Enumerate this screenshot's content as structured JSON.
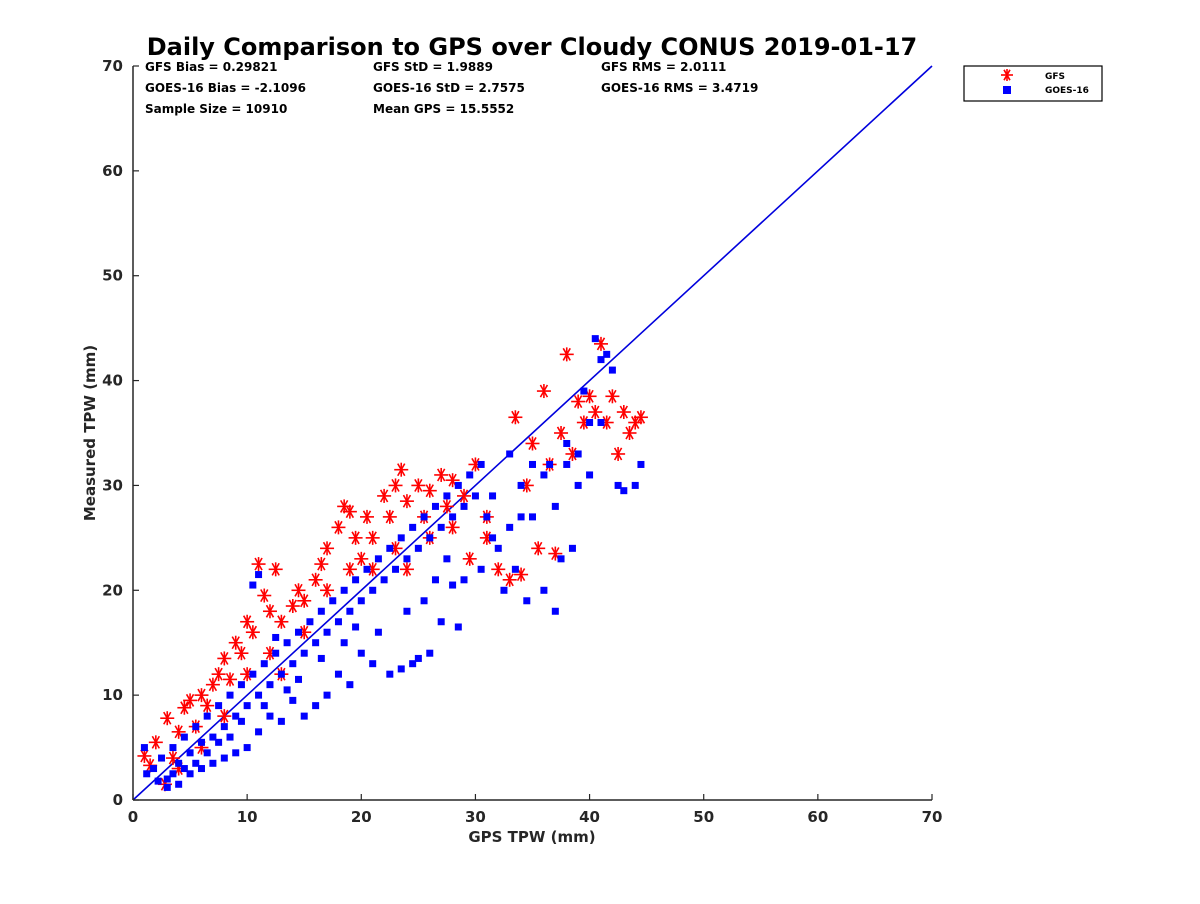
{
  "chart_data": {
    "type": "scatter",
    "title": "Daily Comparison to GPS over Cloudy CONUS 2019-01-17",
    "xlabel": "GPS TPW (mm)",
    "ylabel": "Measured TPW (mm)",
    "xlim": [
      0,
      70
    ],
    "ylim": [
      0,
      70
    ],
    "xticks": [
      "0",
      "10",
      "20",
      "30",
      "40",
      "50",
      "60",
      "70"
    ],
    "yticks": [
      "0",
      "10",
      "20",
      "30",
      "40",
      "50",
      "60",
      "70"
    ],
    "grid": false,
    "legend_position": "outside-top-right",
    "stats": [
      "GFS Bias = 0.29821",
      "GFS StD = 1.9889",
      "GFS RMS = 2.0111",
      "GOES-16 Bias = -2.1096",
      "GOES-16 StD = 2.7575",
      "GOES-16 RMS = 3.4719",
      "Sample Size = 10910",
      "Mean GPS = 15.5552"
    ],
    "reference_line": {
      "x": [
        0,
        70
      ],
      "y": [
        0,
        70
      ],
      "color": "#0000dd"
    },
    "series": [
      {
        "name": "GFS",
        "marker": "asterisk",
        "color": "#ff0000",
        "points": [
          [
            1,
            4.2
          ],
          [
            1.5,
            3.3
          ],
          [
            2,
            5.5
          ],
          [
            2.8,
            1.5
          ],
          [
            3,
            7.8
          ],
          [
            3.5,
            4
          ],
          [
            4,
            6.5
          ],
          [
            4.5,
            8.8
          ],
          [
            5,
            9.5
          ],
          [
            5.5,
            7
          ],
          [
            6,
            10
          ],
          [
            6.5,
            9
          ],
          [
            7,
            11
          ],
          [
            7.5,
            12
          ],
          [
            8,
            13.5
          ],
          [
            8.5,
            11.5
          ],
          [
            9,
            15
          ],
          [
            9.5,
            14
          ],
          [
            10,
            17
          ],
          [
            10.5,
            16
          ],
          [
            11,
            22.5
          ],
          [
            11.5,
            19.5
          ],
          [
            12,
            18
          ],
          [
            12.5,
            22
          ],
          [
            13,
            17
          ],
          [
            14,
            18.5
          ],
          [
            14.5,
            20
          ],
          [
            15,
            19
          ],
          [
            16,
            21
          ],
          [
            16.5,
            22.5
          ],
          [
            17,
            24
          ],
          [
            18,
            26
          ],
          [
            18.5,
            28
          ],
          [
            19,
            27.5
          ],
          [
            19.5,
            25
          ],
          [
            20,
            23
          ],
          [
            20.5,
            27
          ],
          [
            21,
            25
          ],
          [
            22,
            29
          ],
          [
            22.5,
            27
          ],
          [
            23,
            30
          ],
          [
            23.5,
            31.5
          ],
          [
            24,
            28.5
          ],
          [
            25,
            30
          ],
          [
            25.5,
            27
          ],
          [
            26,
            29.5
          ],
          [
            27,
            31
          ],
          [
            27.5,
            28
          ],
          [
            28,
            30.5
          ],
          [
            29,
            29
          ],
          [
            30,
            32
          ],
          [
            31,
            27
          ],
          [
            32,
            22
          ],
          [
            33,
            21
          ],
          [
            33.5,
            36.5
          ],
          [
            34,
            21.5
          ],
          [
            34.5,
            30
          ],
          [
            35,
            34
          ],
          [
            35.5,
            24
          ],
          [
            36,
            39
          ],
          [
            36.5,
            32
          ],
          [
            37,
            23.5
          ],
          [
            37.5,
            35
          ],
          [
            38,
            42.5
          ],
          [
            38.5,
            33
          ],
          [
            39,
            38
          ],
          [
            39.5,
            36
          ],
          [
            40,
            38.5
          ],
          [
            40.5,
            37
          ],
          [
            41,
            43.5
          ],
          [
            41.5,
            36
          ],
          [
            42,
            38.5
          ],
          [
            42.5,
            33
          ],
          [
            43,
            37
          ],
          [
            43.5,
            35
          ],
          [
            44,
            36
          ],
          [
            44.5,
            36.5
          ],
          [
            13,
            12
          ],
          [
            15,
            16
          ],
          [
            17,
            20
          ],
          [
            19,
            22
          ],
          [
            21,
            22
          ],
          [
            23,
            24
          ],
          [
            26,
            25
          ],
          [
            28,
            26
          ],
          [
            8,
            8
          ],
          [
            6,
            5
          ],
          [
            4,
            3
          ],
          [
            10,
            12
          ],
          [
            12,
            14
          ],
          [
            24,
            22
          ],
          [
            31,
            25
          ],
          [
            29.5,
            23
          ]
        ]
      },
      {
        "name": "GOES-16",
        "marker": "square",
        "color": "#0000ff",
        "points": [
          [
            1,
            5
          ],
          [
            1.2,
            2.5
          ],
          [
            1.8,
            3
          ],
          [
            2.5,
            4
          ],
          [
            3,
            2
          ],
          [
            3.5,
            5
          ],
          [
            4,
            3.5
          ],
          [
            4.5,
            6
          ],
          [
            5,
            4.5
          ],
          [
            5.5,
            7
          ],
          [
            6,
            5.5
          ],
          [
            6.5,
            8
          ],
          [
            7,
            6
          ],
          [
            7.5,
            9
          ],
          [
            8,
            7
          ],
          [
            8.5,
            10
          ],
          [
            9,
            8
          ],
          [
            9.5,
            11
          ],
          [
            10,
            9
          ],
          [
            10.5,
            12
          ],
          [
            11,
            10
          ],
          [
            11.5,
            13
          ],
          [
            12,
            11
          ],
          [
            12.5,
            14
          ],
          [
            13,
            12
          ],
          [
            13.5,
            15
          ],
          [
            14,
            13
          ],
          [
            14.5,
            16
          ],
          [
            15,
            14
          ],
          [
            15.5,
            17
          ],
          [
            16,
            15
          ],
          [
            16.5,
            18
          ],
          [
            17,
            16
          ],
          [
            17.5,
            19
          ],
          [
            18,
            17
          ],
          [
            18.5,
            20
          ],
          [
            19,
            18
          ],
          [
            19.5,
            21
          ],
          [
            20,
            19
          ],
          [
            20.5,
            22
          ],
          [
            21,
            20
          ],
          [
            21.5,
            23
          ],
          [
            22,
            21
          ],
          [
            22.5,
            24
          ],
          [
            23,
            22
          ],
          [
            23.5,
            25
          ],
          [
            24,
            23
          ],
          [
            24.5,
            26
          ],
          [
            25,
            24
          ],
          [
            25.5,
            27
          ],
          [
            26,
            25
          ],
          [
            26.5,
            28
          ],
          [
            27,
            26
          ],
          [
            27.5,
            29
          ],
          [
            28,
            27
          ],
          [
            28.5,
            30
          ],
          [
            29,
            28
          ],
          [
            29.5,
            31
          ],
          [
            30,
            29
          ],
          [
            30.5,
            32
          ],
          [
            31,
            27
          ],
          [
            31.5,
            25
          ],
          [
            32,
            24
          ],
          [
            33,
            26
          ],
          [
            34,
            30
          ],
          [
            34.5,
            19
          ],
          [
            35,
            27
          ],
          [
            36,
            20
          ],
          [
            36.5,
            32
          ],
          [
            37,
            18
          ],
          [
            38,
            34
          ],
          [
            38.5,
            24
          ],
          [
            39,
            33
          ],
          [
            39.5,
            39
          ],
          [
            40,
            36
          ],
          [
            40.5,
            44
          ],
          [
            41,
            42
          ],
          [
            41.5,
            42.5
          ],
          [
            42,
            41
          ],
          [
            42.5,
            30
          ],
          [
            43,
            29.5
          ],
          [
            44,
            30
          ],
          [
            44.5,
            32
          ],
          [
            37.5,
            23
          ],
          [
            36,
            31
          ],
          [
            33.5,
            22
          ],
          [
            32.5,
            20
          ],
          [
            30.5,
            22
          ],
          [
            29,
            21
          ],
          [
            28,
            20.5
          ],
          [
            27,
            17
          ],
          [
            26,
            14
          ],
          [
            25,
            13.5
          ],
          [
            24.5,
            13
          ],
          [
            23.5,
            12.5
          ],
          [
            22.5,
            12
          ],
          [
            21,
            13
          ],
          [
            20,
            14
          ],
          [
            19,
            11
          ],
          [
            18,
            12
          ],
          [
            17,
            10
          ],
          [
            16,
            9
          ],
          [
            15,
            8
          ],
          [
            14,
            9.5
          ],
          [
            13,
            7.5
          ],
          [
            12,
            8
          ],
          [
            11,
            6.5
          ],
          [
            10,
            5
          ],
          [
            9,
            4.5
          ],
          [
            8,
            4
          ],
          [
            7,
            3.5
          ],
          [
            6,
            3
          ],
          [
            5,
            2.5
          ],
          [
            4,
            1.5
          ],
          [
            3,
            1.2
          ],
          [
            2.2,
            1.8
          ],
          [
            10.5,
            20.5
          ],
          [
            11,
            21.5
          ],
          [
            12.5,
            15.5
          ],
          [
            25.5,
            19
          ],
          [
            28.5,
            16.5
          ],
          [
            18.5,
            15
          ],
          [
            27.5,
            23
          ],
          [
            26.5,
            21
          ],
          [
            24,
            18
          ],
          [
            21.5,
            16
          ],
          [
            19.5,
            16.5
          ],
          [
            16.5,
            13.5
          ],
          [
            14.5,
            11.5
          ],
          [
            13.5,
            10.5
          ],
          [
            11.5,
            9
          ],
          [
            9.5,
            7.5
          ],
          [
            8.5,
            6
          ],
          [
            7.5,
            5.5
          ],
          [
            6.5,
            4.5
          ],
          [
            5.5,
            3.5
          ],
          [
            4.5,
            3
          ],
          [
            3.5,
            2.5
          ],
          [
            33,
            33
          ],
          [
            31.5,
            29
          ],
          [
            35,
            32
          ],
          [
            34,
            27
          ],
          [
            37,
            28
          ],
          [
            38,
            32
          ],
          [
            39,
            30
          ],
          [
            40,
            31
          ],
          [
            41,
            36
          ]
        ]
      }
    ]
  }
}
